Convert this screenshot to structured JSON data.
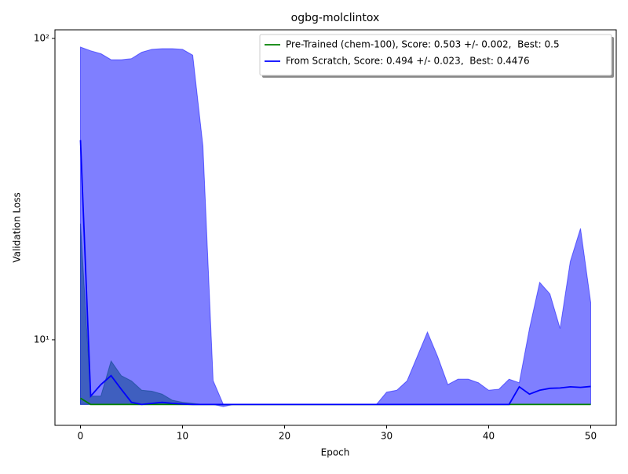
{
  "chart_data": {
    "type": "line",
    "title": "ogbg-molclintox",
    "xlabel": "Epoch",
    "ylabel": "Validation Loss",
    "x": [
      0,
      1,
      2,
      3,
      4,
      5,
      6,
      7,
      8,
      9,
      10,
      11,
      12,
      13,
      14,
      15,
      16,
      17,
      18,
      19,
      20,
      21,
      22,
      23,
      24,
      25,
      26,
      27,
      28,
      29,
      30,
      31,
      32,
      33,
      34,
      35,
      36,
      37,
      38,
      39,
      40,
      41,
      42,
      43,
      44,
      45,
      46,
      47,
      48,
      49,
      50
    ],
    "xlim": [
      -2.5,
      52.5
    ],
    "xticks": [
      0,
      10,
      20,
      30,
      40,
      50
    ],
    "ylim": [
      5.2,
      106.8
    ],
    "yscale": "log",
    "yticks": [
      {
        "value": 10,
        "label": "10¹"
      },
      {
        "value": 100,
        "label": "10²"
      }
    ],
    "legend": "upper right",
    "series": [
      {
        "name": "Pre-Trained (chem-100), Score: 0.503 +/- 0.002,  Best: 0.5",
        "color": "#008000",
        "values": [
          6.4,
          6.1,
          6.1,
          6.1,
          6.1,
          6.1,
          6.1,
          6.1,
          6.1,
          6.1,
          6.1,
          6.1,
          6.1,
          6.1,
          6.1,
          6.1,
          6.1,
          6.1,
          6.1,
          6.1,
          6.1,
          6.1,
          6.1,
          6.1,
          6.1,
          6.1,
          6.1,
          6.1,
          6.1,
          6.1,
          6.1,
          6.1,
          6.1,
          6.1,
          6.1,
          6.1,
          6.1,
          6.1,
          6.1,
          6.1,
          6.1,
          6.1,
          6.1,
          6.1,
          6.1,
          6.1,
          6.1,
          6.1,
          6.1,
          6.1,
          6.1
        ],
        "upper": [
          24.3,
          6.5,
          6.5,
          8.5,
          7.6,
          7.3,
          6.8,
          6.75,
          6.6,
          6.3,
          6.2,
          6.15,
          6.1,
          6.1,
          6.1,
          6.1,
          6.1,
          6.1,
          6.1,
          6.1,
          6.1,
          6.1,
          6.1,
          6.1,
          6.1,
          6.1,
          6.1,
          6.1,
          6.1,
          6.1,
          6.1,
          6.1,
          6.1,
          6.1,
          6.1,
          6.1,
          6.1,
          6.1,
          6.1,
          6.1,
          6.1,
          6.1,
          6.1,
          6.1,
          6.1,
          6.1,
          6.1,
          6.1,
          6.1,
          6.1,
          6.1
        ],
        "lower": [
          6.1,
          6.1,
          6.1,
          6.1,
          6.1,
          6.1,
          6.1,
          6.1,
          6.1,
          6.1,
          6.1,
          6.1,
          6.1,
          6.1,
          6.1,
          6.1,
          6.1,
          6.1,
          6.1,
          6.1,
          6.1,
          6.1,
          6.1,
          6.1,
          6.1,
          6.1,
          6.1,
          6.1,
          6.1,
          6.1,
          6.1,
          6.1,
          6.1,
          6.1,
          6.1,
          6.1,
          6.1,
          6.1,
          6.1,
          6.1,
          6.1,
          6.1,
          6.1,
          6.1,
          6.1,
          6.1,
          6.1,
          6.1,
          6.1,
          6.1,
          6.1
        ]
      },
      {
        "name": "From Scratch, Score: 0.494 +/- 0.023,  Best: 0.4476",
        "color": "#0000ff",
        "values": [
          46,
          6.5,
          7.1,
          7.6,
          6.85,
          6.2,
          6.1,
          6.15,
          6.2,
          6.15,
          6.12,
          6.1,
          6.1,
          6.1,
          6.1,
          6.1,
          6.1,
          6.1,
          6.1,
          6.1,
          6.1,
          6.1,
          6.1,
          6.1,
          6.1,
          6.1,
          6.1,
          6.1,
          6.1,
          6.1,
          6.1,
          6.1,
          6.1,
          6.1,
          6.1,
          6.1,
          6.1,
          6.1,
          6.1,
          6.1,
          6.1,
          6.1,
          6.1,
          6.98,
          6.6,
          6.8,
          6.9,
          6.92,
          6.98,
          6.95,
          7.0
        ],
        "upper": [
          93.6,
          91,
          89,
          85,
          85,
          85.7,
          90,
          92,
          92.5,
          92.5,
          92,
          88,
          44,
          7.32,
          6.1,
          6.1,
          6.1,
          6.1,
          6.1,
          6.1,
          6.1,
          6.1,
          6.1,
          6.1,
          6.1,
          6.1,
          6.1,
          6.1,
          6.1,
          6.1,
          6.7,
          6.8,
          7.3,
          8.8,
          10.6,
          8.8,
          7.1,
          7.4,
          7.4,
          7.2,
          6.8,
          6.85,
          7.4,
          7.2,
          10.9,
          15.5,
          14.2,
          10.9,
          18.2,
          23.4,
          13.3
        ],
        "lower": [
          6.1,
          6.1,
          6.1,
          6.1,
          6.1,
          6.1,
          6.1,
          6.1,
          6.1,
          6.1,
          6.1,
          6.1,
          6.1,
          6.1,
          6.0,
          6.1,
          6.1,
          6.1,
          6.1,
          6.1,
          6.1,
          6.1,
          6.1,
          6.1,
          6.1,
          6.1,
          6.1,
          6.1,
          6.1,
          6.1,
          6.1,
          6.1,
          6.1,
          6.1,
          6.1,
          6.1,
          6.1,
          6.1,
          6.1,
          6.1,
          6.1,
          6.1,
          6.1,
          6.1,
          6.1,
          6.1,
          6.1,
          6.1,
          6.1,
          6.1,
          6.1
        ]
      }
    ]
  }
}
